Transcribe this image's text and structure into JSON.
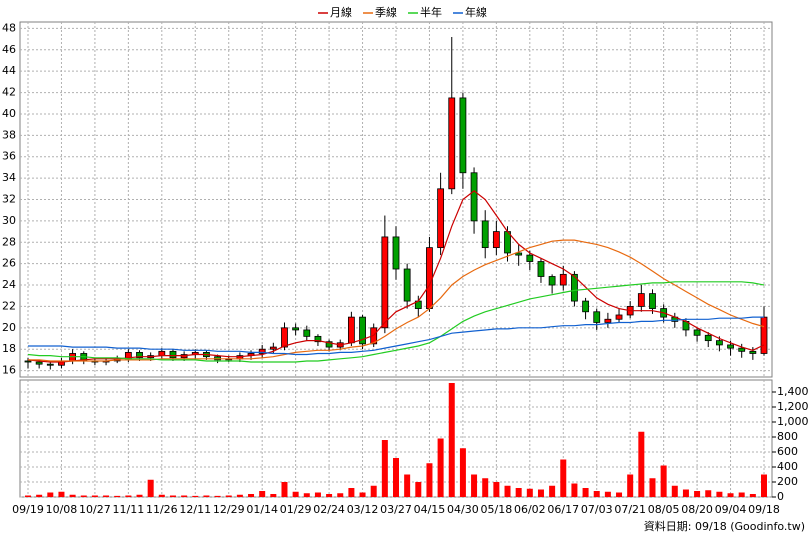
{
  "chart_data": [
    {
      "type": "candlestick",
      "categories": [
        "09/19",
        null,
        null,
        "10/08",
        null,
        null,
        "10/27",
        null,
        null,
        "11/11",
        null,
        null,
        "11/26",
        null,
        null,
        "12/11",
        null,
        null,
        "12/29",
        null,
        null,
        "01/14",
        null,
        null,
        "01/29",
        null,
        null,
        "02/24",
        null,
        null,
        "03/12",
        null,
        null,
        "03/27",
        null,
        null,
        "04/15",
        null,
        null,
        "04/30",
        null,
        null,
        "05/18",
        null,
        null,
        "06/02",
        null,
        null,
        "06/17",
        null,
        null,
        "07/03",
        null,
        null,
        "07/21",
        null,
        null,
        "08/05",
        null,
        null,
        "08/20",
        null,
        null,
        "09/04",
        null,
        null,
        "09/18"
      ],
      "open": [
        16.9,
        16.8,
        16.6,
        16.5,
        16.9,
        17.6,
        16.9,
        16.8,
        16.9,
        17.1,
        17.7,
        17.2,
        17.4,
        17.8,
        17.2,
        17.5,
        17.7,
        17.3,
        17.0,
        17.1,
        17.4,
        17.6,
        18.0,
        18.2,
        20.0,
        19.8,
        19.2,
        18.7,
        18.2,
        18.6,
        21.0,
        18.5,
        20.0,
        28.5,
        25.5,
        22.5,
        21.8,
        27.5,
        33.0,
        41.5,
        34.5,
        30.0,
        27.5,
        29.0,
        27.0,
        26.8,
        26.2,
        24.8,
        24.0,
        25.0,
        22.5,
        21.5,
        20.5,
        20.8,
        21.2,
        22.0,
        23.2,
        21.8,
        21.0,
        20.6,
        19.8,
        19.3,
        18.8,
        18.4,
        18.1,
        17.8,
        17.6
      ],
      "high": [
        17.2,
        17.0,
        16.9,
        17.2,
        18.0,
        17.8,
        17.2,
        17.2,
        17.4,
        18.0,
        17.9,
        17.7,
        18.1,
        18.0,
        17.8,
        18.0,
        17.9,
        17.5,
        17.4,
        17.7,
        17.9,
        18.4,
        18.6,
        20.5,
        20.4,
        20.2,
        19.4,
        18.9,
        18.9,
        21.5,
        21.2,
        20.4,
        30.5,
        29.5,
        26.0,
        23.0,
        28.5,
        34.5,
        47.2,
        42.0,
        35.0,
        31.0,
        30.0,
        29.5,
        27.8,
        27.2,
        26.5,
        25.0,
        25.8,
        25.3,
        22.8,
        21.8,
        21.4,
        21.8,
        22.5,
        24.0,
        23.6,
        22.2,
        21.4,
        20.9,
        20.0,
        19.6,
        19.2,
        18.8,
        18.5,
        18.2,
        22.0
      ],
      "low": [
        16.2,
        16.2,
        16.1,
        16.2,
        16.6,
        16.6,
        16.5,
        16.5,
        16.7,
        16.8,
        16.9,
        16.9,
        17.0,
        16.9,
        16.9,
        17.0,
        17.0,
        16.7,
        16.8,
        16.8,
        17.0,
        17.2,
        17.6,
        17.9,
        19.3,
        18.8,
        18.3,
        17.8,
        17.9,
        18.3,
        18.0,
        18.2,
        19.5,
        24.5,
        21.8,
        21.0,
        21.5,
        26.8,
        32.5,
        33.0,
        28.8,
        26.5,
        26.8,
        26.2,
        25.8,
        25.4,
        24.2,
        23.2,
        23.5,
        22.0,
        20.8,
        19.8,
        20.0,
        20.5,
        20.9,
        21.5,
        21.3,
        20.5,
        20.0,
        19.2,
        18.7,
        18.2,
        17.8,
        17.4,
        17.2,
        17.0,
        17.4
      ],
      "close": [
        16.8,
        16.6,
        16.5,
        16.9,
        17.6,
        16.9,
        16.8,
        16.9,
        17.1,
        17.7,
        17.2,
        17.4,
        17.8,
        17.2,
        17.5,
        17.7,
        17.3,
        17.0,
        17.1,
        17.4,
        17.6,
        18.0,
        18.2,
        20.0,
        19.8,
        19.2,
        18.7,
        18.2,
        18.6,
        21.0,
        18.5,
        20.0,
        28.5,
        25.5,
        22.5,
        21.8,
        27.5,
        33.0,
        41.5,
        34.5,
        30.0,
        27.5,
        29.0,
        27.0,
        26.8,
        26.2,
        24.8,
        24.0,
        25.0,
        22.5,
        21.5,
        20.5,
        20.8,
        21.2,
        22.0,
        23.2,
        21.8,
        21.0,
        20.6,
        19.8,
        19.3,
        18.8,
        18.4,
        18.1,
        17.8,
        17.6,
        21.0
      ],
      "up_color": "#ff0000",
      "down_color": "#00a000",
      "series": [
        {
          "name": "月線",
          "color": "#cc0000",
          "values": [
            17.0,
            16.9,
            16.8,
            16.8,
            16.9,
            17.0,
            17.1,
            17.1,
            17.1,
            17.2,
            17.3,
            17.3,
            17.4,
            17.4,
            17.4,
            17.5,
            17.5,
            17.4,
            17.3,
            17.3,
            17.4,
            17.5,
            17.8,
            18.3,
            18.6,
            18.8,
            18.8,
            18.6,
            18.4,
            18.6,
            18.9,
            19.3,
            20.5,
            21.5,
            22.0,
            22.5,
            24.0,
            26.5,
            29.5,
            32.0,
            32.8,
            32.0,
            30.5,
            29.0,
            27.8,
            27.0,
            26.5,
            26.0,
            25.5,
            24.8,
            23.8,
            22.8,
            22.2,
            21.8,
            21.6,
            21.6,
            21.6,
            21.4,
            21.0,
            20.6,
            20.0,
            19.5,
            19.0,
            18.6,
            18.2,
            17.9,
            18.4
          ]
        },
        {
          "name": "季線",
          "color": "#e86a10",
          "values": [
            17.0,
            17.0,
            16.9,
            16.9,
            16.9,
            16.9,
            16.9,
            16.9,
            17.0,
            17.0,
            17.0,
            17.0,
            17.1,
            17.1,
            17.1,
            17.1,
            17.1,
            17.1,
            17.1,
            17.1,
            17.1,
            17.2,
            17.3,
            17.5,
            17.7,
            17.8,
            17.9,
            17.9,
            18.0,
            18.2,
            18.3,
            18.6,
            19.2,
            19.9,
            20.5,
            21.0,
            21.8,
            22.8,
            24.0,
            24.8,
            25.4,
            25.9,
            26.3,
            26.7,
            27.1,
            27.5,
            27.8,
            28.1,
            28.2,
            28.2,
            28.0,
            27.8,
            27.5,
            27.1,
            26.6,
            26.0,
            25.3,
            24.6,
            24.0,
            23.4,
            22.8,
            22.2,
            21.7,
            21.2,
            20.8,
            20.4,
            20.1
          ]
        },
        {
          "name": "半年",
          "color": "#22cc22",
          "values": [
            17.5,
            17.4,
            17.4,
            17.3,
            17.3,
            17.3,
            17.2,
            17.2,
            17.2,
            17.1,
            17.1,
            17.1,
            17.0,
            17.0,
            17.0,
            17.0,
            16.9,
            16.9,
            16.9,
            16.9,
            16.8,
            16.8,
            16.8,
            16.8,
            16.8,
            16.9,
            16.9,
            17.0,
            17.1,
            17.2,
            17.3,
            17.5,
            17.7,
            17.9,
            18.1,
            18.3,
            18.6,
            19.2,
            19.9,
            20.6,
            21.1,
            21.5,
            21.8,
            22.1,
            22.4,
            22.7,
            22.9,
            23.1,
            23.3,
            23.5,
            23.6,
            23.7,
            23.8,
            23.9,
            24.0,
            24.1,
            24.2,
            24.2,
            24.3,
            24.3,
            24.3,
            24.3,
            24.3,
            24.3,
            24.3,
            24.2,
            24.0
          ]
        },
        {
          "name": "年線",
          "color": "#1060d0",
          "values": [
            18.3,
            18.3,
            18.3,
            18.3,
            18.2,
            18.2,
            18.2,
            18.2,
            18.1,
            18.1,
            18.1,
            18.0,
            18.0,
            18.0,
            17.9,
            17.9,
            17.9,
            17.8,
            17.8,
            17.8,
            17.7,
            17.7,
            17.6,
            17.6,
            17.5,
            17.5,
            17.6,
            17.6,
            17.7,
            17.7,
            17.8,
            17.9,
            18.1,
            18.3,
            18.5,
            18.7,
            18.9,
            19.2,
            19.5,
            19.6,
            19.7,
            19.8,
            19.9,
            19.9,
            20.0,
            20.0,
            20.0,
            20.1,
            20.2,
            20.2,
            20.3,
            20.3,
            20.4,
            20.5,
            20.5,
            20.6,
            20.6,
            20.7,
            20.7,
            20.8,
            20.8,
            20.8,
            20.9,
            20.9,
            20.9,
            21.0,
            21.0
          ]
        }
      ],
      "ylim": [
        15.4,
        48.6
      ],
      "yticks": [
        16,
        18,
        20,
        22,
        24,
        26,
        28,
        30,
        32,
        34,
        36,
        38,
        40,
        42,
        44,
        46,
        48
      ],
      "grid": true,
      "legend": "top"
    },
    {
      "type": "bar",
      "values": [
        20,
        30,
        60,
        70,
        30,
        20,
        20,
        20,
        15,
        20,
        30,
        230,
        30,
        20,
        20,
        15,
        20,
        15,
        20,
        30,
        40,
        80,
        40,
        200,
        70,
        50,
        60,
        40,
        50,
        120,
        60,
        150,
        760,
        520,
        300,
        200,
        450,
        780,
        1520,
        650,
        300,
        250,
        200,
        150,
        120,
        110,
        100,
        150,
        500,
        180,
        120,
        80,
        70,
        60,
        300,
        870,
        250,
        420,
        150,
        100,
        80,
        90,
        70,
        50,
        60,
        40,
        300
      ],
      "color": "#ff0000",
      "ylim": [
        0,
        1560
      ],
      "yticks": [
        0,
        200,
        400,
        600,
        800,
        {
          "value": 1000,
          "label": "1,000"
        },
        {
          "value": 1200,
          "label": "1,200"
        },
        {
          "value": 1400,
          "label": "1,400"
        }
      ],
      "grid": true,
      "source": "資料日期: 09/18 (Goodinfo.tw)"
    }
  ]
}
